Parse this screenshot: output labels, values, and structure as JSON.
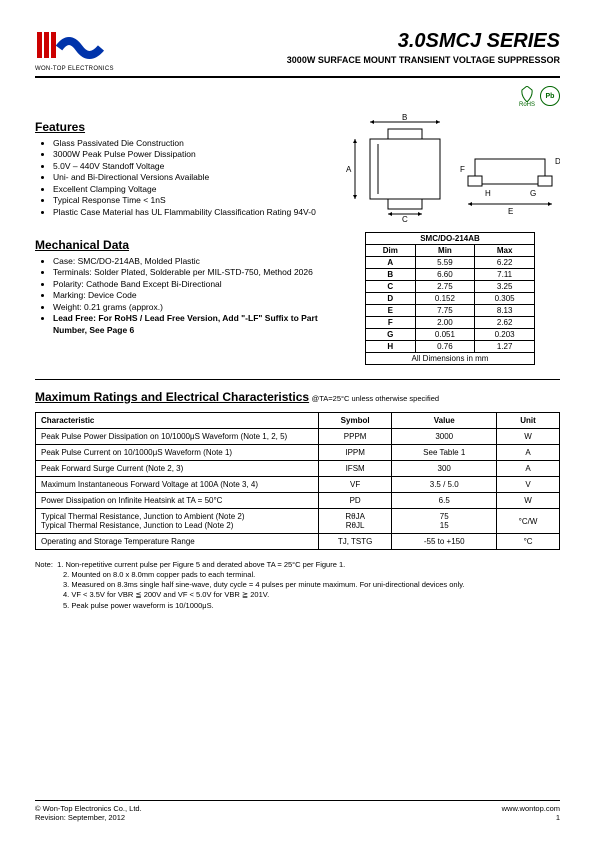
{
  "header": {
    "logo_sub": "WON-TOP ELECTRONICS",
    "title": "3.0SMCJ  SERIES",
    "subtitle": "3000W  SURFACE  MOUNT  TRANSIENT  VOLTAGE  SUPPRESSOR",
    "badge_rohs": "RoHS",
    "badge_pb": "Pb"
  },
  "logo": {
    "bar_color": "#cc0000",
    "wave_color": "#0033aa"
  },
  "features": {
    "heading": "Features",
    "items": [
      "Glass Passivated Die Construction",
      "3000W Peak Pulse Power Dissipation",
      "5.0V – 440V Standoff Voltage",
      "Uni- and Bi-Directional Versions Available",
      "Excellent Clamping Voltage",
      "Typical Response Time < 1nS",
      "Plastic Case Material has UL Flammability Classification Rating 94V-0"
    ]
  },
  "mechanical": {
    "heading": "Mechanical Data",
    "items": [
      "Case: SMC/DO-214AB, Molded Plastic",
      "Terminals: Solder Plated, Solderable per MIL-STD-750, Method 2026",
      "Polarity: Cathode Band Except Bi-Directional",
      "Marking: Device Code",
      "Weight: 0.21 grams (approx.)"
    ],
    "leadfree": "Lead Free: For RoHS / Lead Free Version, Add \"-LF\" Suffix to Part Number, See Page 6"
  },
  "diagram": {
    "labels": [
      "A",
      "B",
      "C",
      "D",
      "E",
      "F",
      "G",
      "H"
    ],
    "body_fill": "#ffffff",
    "line_color": "#000000"
  },
  "dimtable": {
    "title": "SMC/DO-214AB",
    "headers": [
      "Dim",
      "Min",
      "Max"
    ],
    "rows": [
      [
        "A",
        "5.59",
        "6.22"
      ],
      [
        "B",
        "6.60",
        "7.11"
      ],
      [
        "C",
        "2.75",
        "3.25"
      ],
      [
        "D",
        "0.152",
        "0.305"
      ],
      [
        "E",
        "7.75",
        "8.13"
      ],
      [
        "F",
        "2.00",
        "2.62"
      ],
      [
        "G",
        "0.051",
        "0.203"
      ],
      [
        "H",
        "0.76",
        "1.27"
      ]
    ],
    "footer": "All Dimensions in mm"
  },
  "ratings": {
    "heading": "Maximum Ratings and Electrical Characteristics",
    "condition": " @TA=25°C unless otherwise specified",
    "headers": [
      "Characteristic",
      "Symbol",
      "Value",
      "Unit"
    ],
    "rows": [
      {
        "char": "Peak Pulse Power Dissipation on 10/1000μS Waveform (Note 1, 2, 5)",
        "sym": "PPPM",
        "val": "3000",
        "unit": "W"
      },
      {
        "char": "Peak Pulse Current on 10/1000μS Waveform (Note 1)",
        "sym": "IPPM",
        "val": "See Table 1",
        "unit": "A"
      },
      {
        "char": "Peak Forward Surge Current (Note 2, 3)",
        "sym": "IFSM",
        "val": "300",
        "unit": "A"
      },
      {
        "char": "Maximum Instantaneous Forward Voltage at 100A (Note 3, 4)",
        "sym": "VF",
        "val": "3.5 / 5.0",
        "unit": "V"
      },
      {
        "char": "Power Dissipation on Infinite Heatsink at TA = 50°C",
        "sym": "PD",
        "val": "6.5",
        "unit": "W"
      },
      {
        "char": "Typical Thermal Resistance, Junction to Ambient (Note 2)\nTypical Thermal Resistance, Junction to Lead (Note 2)",
        "sym": "RθJA\nRθJL",
        "val": "75\n15",
        "unit": "°C/W"
      },
      {
        "char": "Operating and Storage Temperature Range",
        "sym": "TJ, TSTG",
        "val": "-55 to +150",
        "unit": "°C"
      }
    ]
  },
  "notes": {
    "label": "Note:",
    "lines": [
      "1. Non-repetitive current pulse per Figure 5 and derated above TA = 25°C per Figure 1.",
      "2. Mounted on 8.0 x 8.0mm copper pads to each terminal.",
      "3. Measured on 8.3ms single half sine-wave, duty cycle = 4 pulses per minute maximum. For uni-directional devices only.",
      "4. VF < 3.5V for VBR ≦ 200V and VF < 5.0V for VBR ≧ 201V.",
      "5. Peak pulse power waveform is 10/1000μS."
    ]
  },
  "footer": {
    "left1": "© Won-Top Electronics Co., Ltd.",
    "left2": "Revision: September, 2012",
    "right1": "www.wontop.com",
    "right2": "1"
  }
}
